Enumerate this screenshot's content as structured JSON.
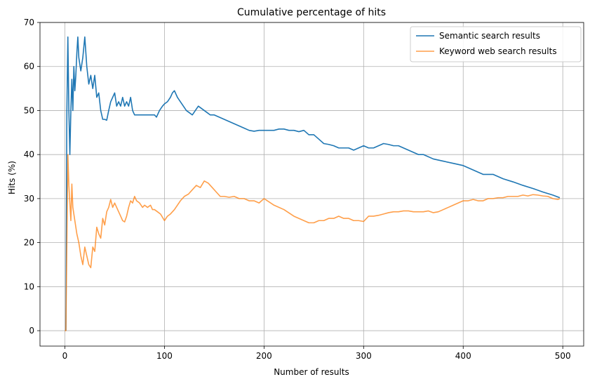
{
  "chart_data": {
    "type": "line",
    "title": "Cumulative percentage of hits",
    "xlabel": "Number of results",
    "ylabel": "Hits (%)",
    "xlim": [
      -25,
      521
    ],
    "ylim": [
      -3.5,
      70
    ],
    "xticks": [
      0,
      100,
      200,
      300,
      400,
      500
    ],
    "yticks": [
      0,
      10,
      20,
      30,
      40,
      50,
      60,
      70
    ],
    "grid": true,
    "legend_position": "top-right",
    "series": [
      {
        "name": "Semantic search results",
        "color": "#1f77b4",
        "x": [
          1,
          2,
          3,
          4,
          5,
          6,
          7,
          8,
          9,
          10,
          11,
          12,
          13,
          14,
          16,
          18,
          20,
          22,
          24,
          26,
          28,
          30,
          32,
          34,
          36,
          38,
          40,
          42,
          44,
          46,
          48,
          50,
          52,
          54,
          56,
          58,
          60,
          62,
          64,
          66,
          68,
          70,
          72,
          75,
          78,
          80,
          83,
          86,
          88,
          90,
          92,
          95,
          98,
          100,
          103,
          106,
          108,
          110,
          113,
          116,
          119,
          122,
          125,
          128,
          131,
          134,
          137,
          140,
          143,
          146,
          150,
          155,
          160,
          165,
          170,
          175,
          180,
          185,
          190,
          195,
          200,
          205,
          210,
          215,
          220,
          225,
          230,
          235,
          240,
          245,
          250,
          255,
          260,
          265,
          270,
          275,
          280,
          285,
          290,
          295,
          300,
          305,
          310,
          315,
          320,
          325,
          330,
          335,
          340,
          345,
          350,
          355,
          360,
          370,
          380,
          390,
          400,
          410,
          420,
          430,
          440,
          450,
          460,
          470,
          480,
          490,
          497
        ],
        "y": [
          0,
          50,
          66.7,
          50,
          40,
          50,
          57.1,
          50,
          60,
          54.5,
          58,
          63,
          66.7,
          62,
          59,
          62,
          66.7,
          60,
          56,
          58,
          55,
          58,
          53,
          54,
          50,
          48,
          48,
          47.8,
          50,
          52,
          53,
          54,
          51,
          52,
          51,
          53,
          51,
          52,
          51,
          53,
          50,
          49,
          49,
          49,
          49,
          49,
          49,
          49,
          49,
          49,
          48.5,
          50,
          51,
          51.5,
          52,
          53,
          54,
          54.5,
          53,
          52,
          51,
          50,
          49.5,
          49,
          50,
          51,
          50.5,
          50,
          49.5,
          49,
          49,
          48.5,
          48,
          47.5,
          47,
          46.5,
          46,
          45.5,
          45.3,
          45.5,
          45.5,
          45.5,
          45.5,
          45.8,
          45.8,
          45.5,
          45.5,
          45.2,
          45.5,
          44.5,
          44.5,
          43.5,
          42.5,
          42.3,
          42,
          41.5,
          41.5,
          41.5,
          41,
          41.5,
          42,
          41.5,
          41.5,
          42,
          42.5,
          42.3,
          42,
          42,
          41.5,
          41,
          40.5,
          40,
          40,
          39,
          38.5,
          38,
          37.5,
          36.5,
          35.5,
          35.5,
          34.5,
          33.8,
          33,
          32.3,
          31.5,
          30.8,
          30.2
        ]
      },
      {
        "name": "Keyword web search results",
        "color": "#ff7f0e",
        "x": [
          0,
          1,
          2,
          3,
          4,
          5,
          6,
          7,
          8,
          10,
          12,
          14,
          16,
          18,
          20,
          22,
          24,
          26,
          28,
          30,
          32,
          34,
          36,
          38,
          40,
          42,
          44,
          46,
          48,
          50,
          52,
          54,
          56,
          58,
          60,
          62,
          64,
          66,
          68,
          70,
          72,
          75,
          78,
          80,
          83,
          86,
          88,
          90,
          93,
          96,
          100,
          103,
          106,
          110,
          113,
          116,
          120,
          124,
          128,
          132,
          136,
          140,
          144,
          148,
          152,
          156,
          160,
          165,
          170,
          175,
          180,
          185,
          190,
          195,
          200,
          210,
          220,
          230,
          240,
          245,
          250,
          255,
          260,
          265,
          270,
          275,
          280,
          285,
          290,
          295,
          300,
          305,
          310,
          315,
          320,
          325,
          330,
          335,
          340,
          345,
          350,
          355,
          360,
          365,
          370,
          375,
          380,
          385,
          390,
          395,
          400,
          405,
          410,
          415,
          420,
          425,
          430,
          435,
          440,
          445,
          450,
          455,
          460,
          465,
          470,
          475,
          480,
          485,
          490,
          495,
          497
        ],
        "y": [
          0,
          0,
          20,
          40,
          33,
          29,
          25,
          33.3,
          28,
          25,
          22,
          20,
          17,
          15,
          19,
          17,
          15,
          14.3,
          19,
          18,
          23.5,
          22,
          21,
          25.5,
          24,
          27,
          28,
          29.8,
          28,
          29,
          28,
          27,
          26,
          25,
          24.7,
          26,
          28,
          29.5,
          29,
          30.5,
          29.5,
          29,
          28,
          28.5,
          28,
          28.5,
          27.5,
          27.5,
          27,
          26.5,
          25,
          26,
          26.5,
          27.5,
          28.5,
          29.5,
          30.5,
          31,
          32,
          33,
          32.5,
          34,
          33.5,
          32.5,
          31.5,
          30.5,
          30.5,
          30.3,
          30.5,
          30,
          30,
          29.5,
          29.5,
          29,
          30,
          28.5,
          27.5,
          26,
          25,
          24.5,
          24.5,
          25,
          25,
          25.5,
          25.5,
          26,
          25.5,
          25.5,
          25,
          25,
          24.8,
          26,
          26,
          26.2,
          26.5,
          26.8,
          27,
          27,
          27.2,
          27.2,
          27,
          27,
          27,
          27.2,
          26.8,
          27,
          27.5,
          28,
          28.5,
          29,
          29.5,
          29.5,
          29.8,
          29.5,
          29.5,
          30,
          30,
          30.2,
          30.2,
          30.5,
          30.5,
          30.5,
          30.8,
          30.6,
          30.9,
          30.8,
          30.6,
          30.5,
          30,
          29.8,
          30
        ]
      }
    ]
  }
}
